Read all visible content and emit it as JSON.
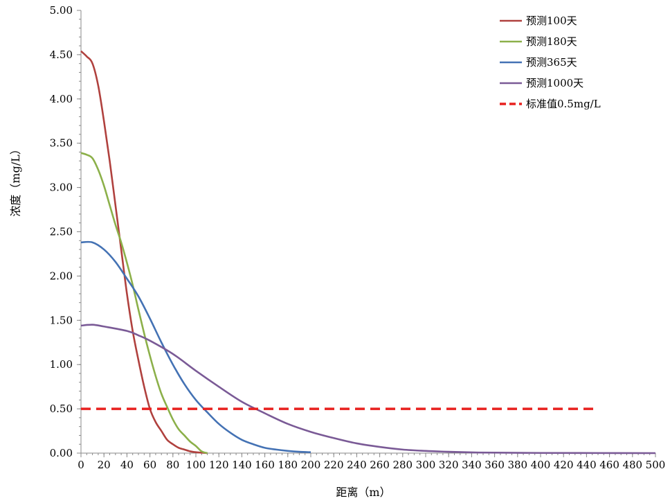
{
  "chart_data": {
    "type": "line",
    "xlabel": "距离（m）",
    "ylabel": "浓度（mg/L）",
    "xlim": [
      0,
      500
    ],
    "ylim": [
      0,
      5
    ],
    "x_ticks": [
      0,
      20,
      40,
      60,
      80,
      100,
      120,
      140,
      160,
      180,
      200,
      220,
      240,
      260,
      280,
      300,
      320,
      340,
      360,
      380,
      400,
      420,
      440,
      460,
      480,
      500
    ],
    "y_ticks": [
      0,
      0.5,
      1,
      1.5,
      2,
      2.5,
      3,
      3.5,
      4,
      4.5,
      5
    ],
    "y_tick_labels": [
      "0.00",
      "0.50",
      "1.00",
      "1.50",
      "2.00",
      "2.50",
      "3.00",
      "3.50",
      "4.00",
      "4.50",
      "5.00"
    ],
    "grid": false,
    "legend_position": "top-right",
    "series": [
      {
        "name": "预测100天",
        "color": "#b0413e",
        "style": "solid",
        "points": [
          [
            0,
            4.54
          ],
          [
            5,
            4.48
          ],
          [
            10,
            4.4
          ],
          [
            15,
            4.15
          ],
          [
            20,
            3.75
          ],
          [
            25,
            3.3
          ],
          [
            30,
            2.8
          ],
          [
            35,
            2.3
          ],
          [
            40,
            1.8
          ],
          [
            45,
            1.38
          ],
          [
            50,
            1.05
          ],
          [
            55,
            0.75
          ],
          [
            60,
            0.5
          ],
          [
            65,
            0.35
          ],
          [
            70,
            0.25
          ],
          [
            75,
            0.15
          ],
          [
            80,
            0.1
          ],
          [
            85,
            0.06
          ],
          [
            90,
            0.04
          ],
          [
            95,
            0.02
          ],
          [
            100,
            0.01
          ],
          [
            105,
            0.005
          ],
          [
            110,
            0.0
          ]
        ]
      },
      {
        "name": "预测180天",
        "color": "#8cb04a",
        "style": "solid",
        "points": [
          [
            0,
            3.39
          ],
          [
            5,
            3.37
          ],
          [
            10,
            3.33
          ],
          [
            15,
            3.2
          ],
          [
            20,
            3.02
          ],
          [
            25,
            2.8
          ],
          [
            30,
            2.58
          ],
          [
            35,
            2.38
          ],
          [
            40,
            2.15
          ],
          [
            45,
            1.9
          ],
          [
            50,
            1.62
          ],
          [
            55,
            1.35
          ],
          [
            60,
            1.1
          ],
          [
            65,
            0.87
          ],
          [
            70,
            0.67
          ],
          [
            75,
            0.52
          ],
          [
            80,
            0.38
          ],
          [
            85,
            0.27
          ],
          [
            90,
            0.2
          ],
          [
            95,
            0.13
          ],
          [
            100,
            0.08
          ],
          [
            105,
            0.02
          ],
          [
            110,
            0.0
          ]
        ]
      },
      {
        "name": "预测365天",
        "color": "#4472b4",
        "style": "solid",
        "points": [
          [
            0,
            2.38
          ],
          [
            10,
            2.38
          ],
          [
            20,
            2.3
          ],
          [
            30,
            2.16
          ],
          [
            40,
            1.97
          ],
          [
            50,
            1.77
          ],
          [
            60,
            1.52
          ],
          [
            70,
            1.25
          ],
          [
            80,
            1.0
          ],
          [
            90,
            0.78
          ],
          [
            100,
            0.6
          ],
          [
            110,
            0.46
          ],
          [
            120,
            0.33
          ],
          [
            130,
            0.23
          ],
          [
            140,
            0.15
          ],
          [
            150,
            0.1
          ],
          [
            160,
            0.06
          ],
          [
            170,
            0.04
          ],
          [
            180,
            0.025
          ],
          [
            190,
            0.015
          ],
          [
            200,
            0.01
          ]
        ]
      },
      {
        "name": "预测1000天",
        "color": "#7a5a96",
        "style": "solid",
        "points": [
          [
            0,
            1.44
          ],
          [
            10,
            1.45
          ],
          [
            20,
            1.43
          ],
          [
            40,
            1.38
          ],
          [
            50,
            1.33
          ],
          [
            60,
            1.27
          ],
          [
            80,
            1.12
          ],
          [
            100,
            0.93
          ],
          [
            120,
            0.75
          ],
          [
            140,
            0.58
          ],
          [
            160,
            0.45
          ],
          [
            180,
            0.33
          ],
          [
            200,
            0.24
          ],
          [
            220,
            0.17
          ],
          [
            240,
            0.11
          ],
          [
            260,
            0.07
          ],
          [
            280,
            0.04
          ],
          [
            300,
            0.025
          ],
          [
            320,
            0.015
          ],
          [
            340,
            0.008
          ],
          [
            360,
            0.005
          ],
          [
            400,
            0.002
          ],
          [
            450,
            0.001
          ],
          [
            500,
            0.0
          ]
        ]
      },
      {
        "name": "标准值0.5mg/L",
        "color": "#e8211f",
        "style": "dashed",
        "points": [
          [
            0,
            0.5
          ],
          [
            450,
            0.5
          ]
        ]
      }
    ]
  }
}
